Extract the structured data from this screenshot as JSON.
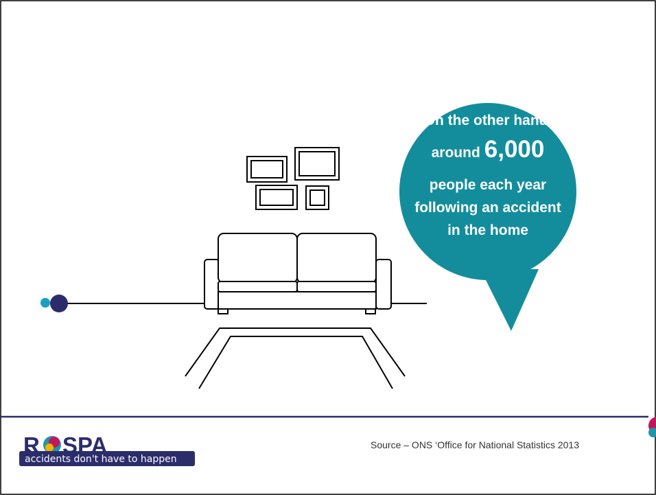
{
  "bubble": {
    "lines": [
      "On the other hand,",
      "around",
      "6,000",
      "people each year",
      "following an accident",
      "in the home"
    ]
  },
  "logo": {
    "letter_r": "R",
    "letters_spa": "SPA",
    "tagline": "accidents don't have to happen"
  },
  "source": "Source – ONS  ‘Office for National Statistics 2013"
}
